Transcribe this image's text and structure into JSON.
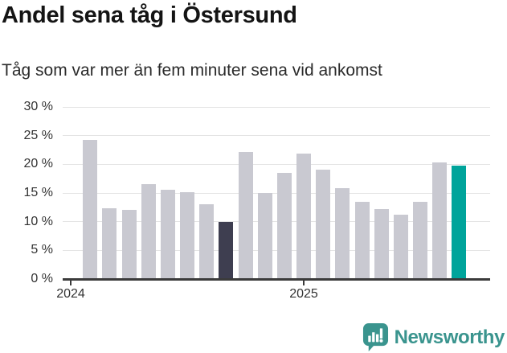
{
  "header": {
    "title": "Andel sena tåg i Östersund",
    "subtitle": "Tåg som var mer än fem minuter sena vid ankomst"
  },
  "chart_data": {
    "type": "bar",
    "title": "Andel sena tåg i Östersund",
    "subtitle": "Tåg som var mer än fem minuter sena vid ankomst",
    "unit": "%",
    "categories": [
      "2024-02",
      "2024-03",
      "2024-04",
      "2024-05",
      "2024-06",
      "2024-07",
      "2024-08",
      "2024-09",
      "2024-10",
      "2024-11",
      "2024-12",
      "2025-01",
      "2025-02",
      "2025-03",
      "2025-04",
      "2025-05",
      "2025-06",
      "2025-07",
      "2025-08",
      "2025-09"
    ],
    "values": [
      24.2,
      12.4,
      12.0,
      16.5,
      15.5,
      15.1,
      13.0,
      9.9,
      22.1,
      15.0,
      18.5,
      21.8,
      19.1,
      15.9,
      13.5,
      12.2,
      11.2,
      13.5,
      20.3,
      19.8
    ],
    "highlighted_dark_index": 7,
    "highlighted_teal_index": 19,
    "ylim": [
      0,
      30
    ],
    "grid": true,
    "legend": "none",
    "y_ticks": [
      {
        "value": 0,
        "label": "0 %"
      },
      {
        "value": 5,
        "label": "5 %"
      },
      {
        "value": 10,
        "label": "10 %"
      },
      {
        "value": 15,
        "label": "15 %"
      },
      {
        "value": 20,
        "label": "20 %"
      },
      {
        "value": 25,
        "label": "25 %"
      },
      {
        "value": 30,
        "label": "30 %"
      }
    ],
    "x_ticks": [
      {
        "month": "2024-01",
        "label": "2024"
      },
      {
        "month": "2025-01",
        "label": "2025"
      }
    ],
    "colors": {
      "bar_default": "#c9c9d1",
      "bar_dark": "#3e3e50",
      "bar_teal": "#00a49b",
      "axis": "#3b3b3b",
      "gridline": "#e4e4e4",
      "tick_text": "#333333"
    }
  },
  "footer": {
    "brand": "Newsworthy",
    "brand_color": "#3a948e"
  }
}
